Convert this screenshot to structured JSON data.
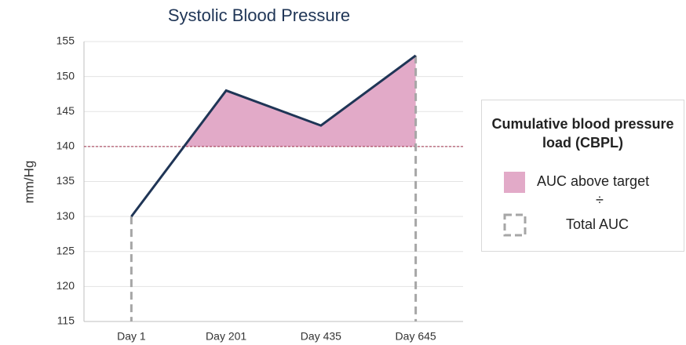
{
  "chart_data": {
    "type": "line",
    "title": "Systolic Blood Pressure",
    "ylabel": "mm/Hg",
    "categories": [
      "Day 1",
      "Day 201",
      "Day 435",
      "Day 645"
    ],
    "series": [
      {
        "color": "#1f3556",
        "values": [
          130,
          148,
          143,
          153
        ]
      }
    ],
    "target": 140,
    "target_color": "#a0304a",
    "area_color": "#e2aac8",
    "ylim": [
      115,
      155
    ],
    "yticks": [
      115,
      120,
      125,
      130,
      135,
      140,
      145,
      150,
      155
    ],
    "grid": true,
    "legend": {
      "title": "Cumulative blood pressure load (CBPL)",
      "area_label": "AUC above target",
      "divider": "÷",
      "total_label": "Total AUC"
    }
  }
}
